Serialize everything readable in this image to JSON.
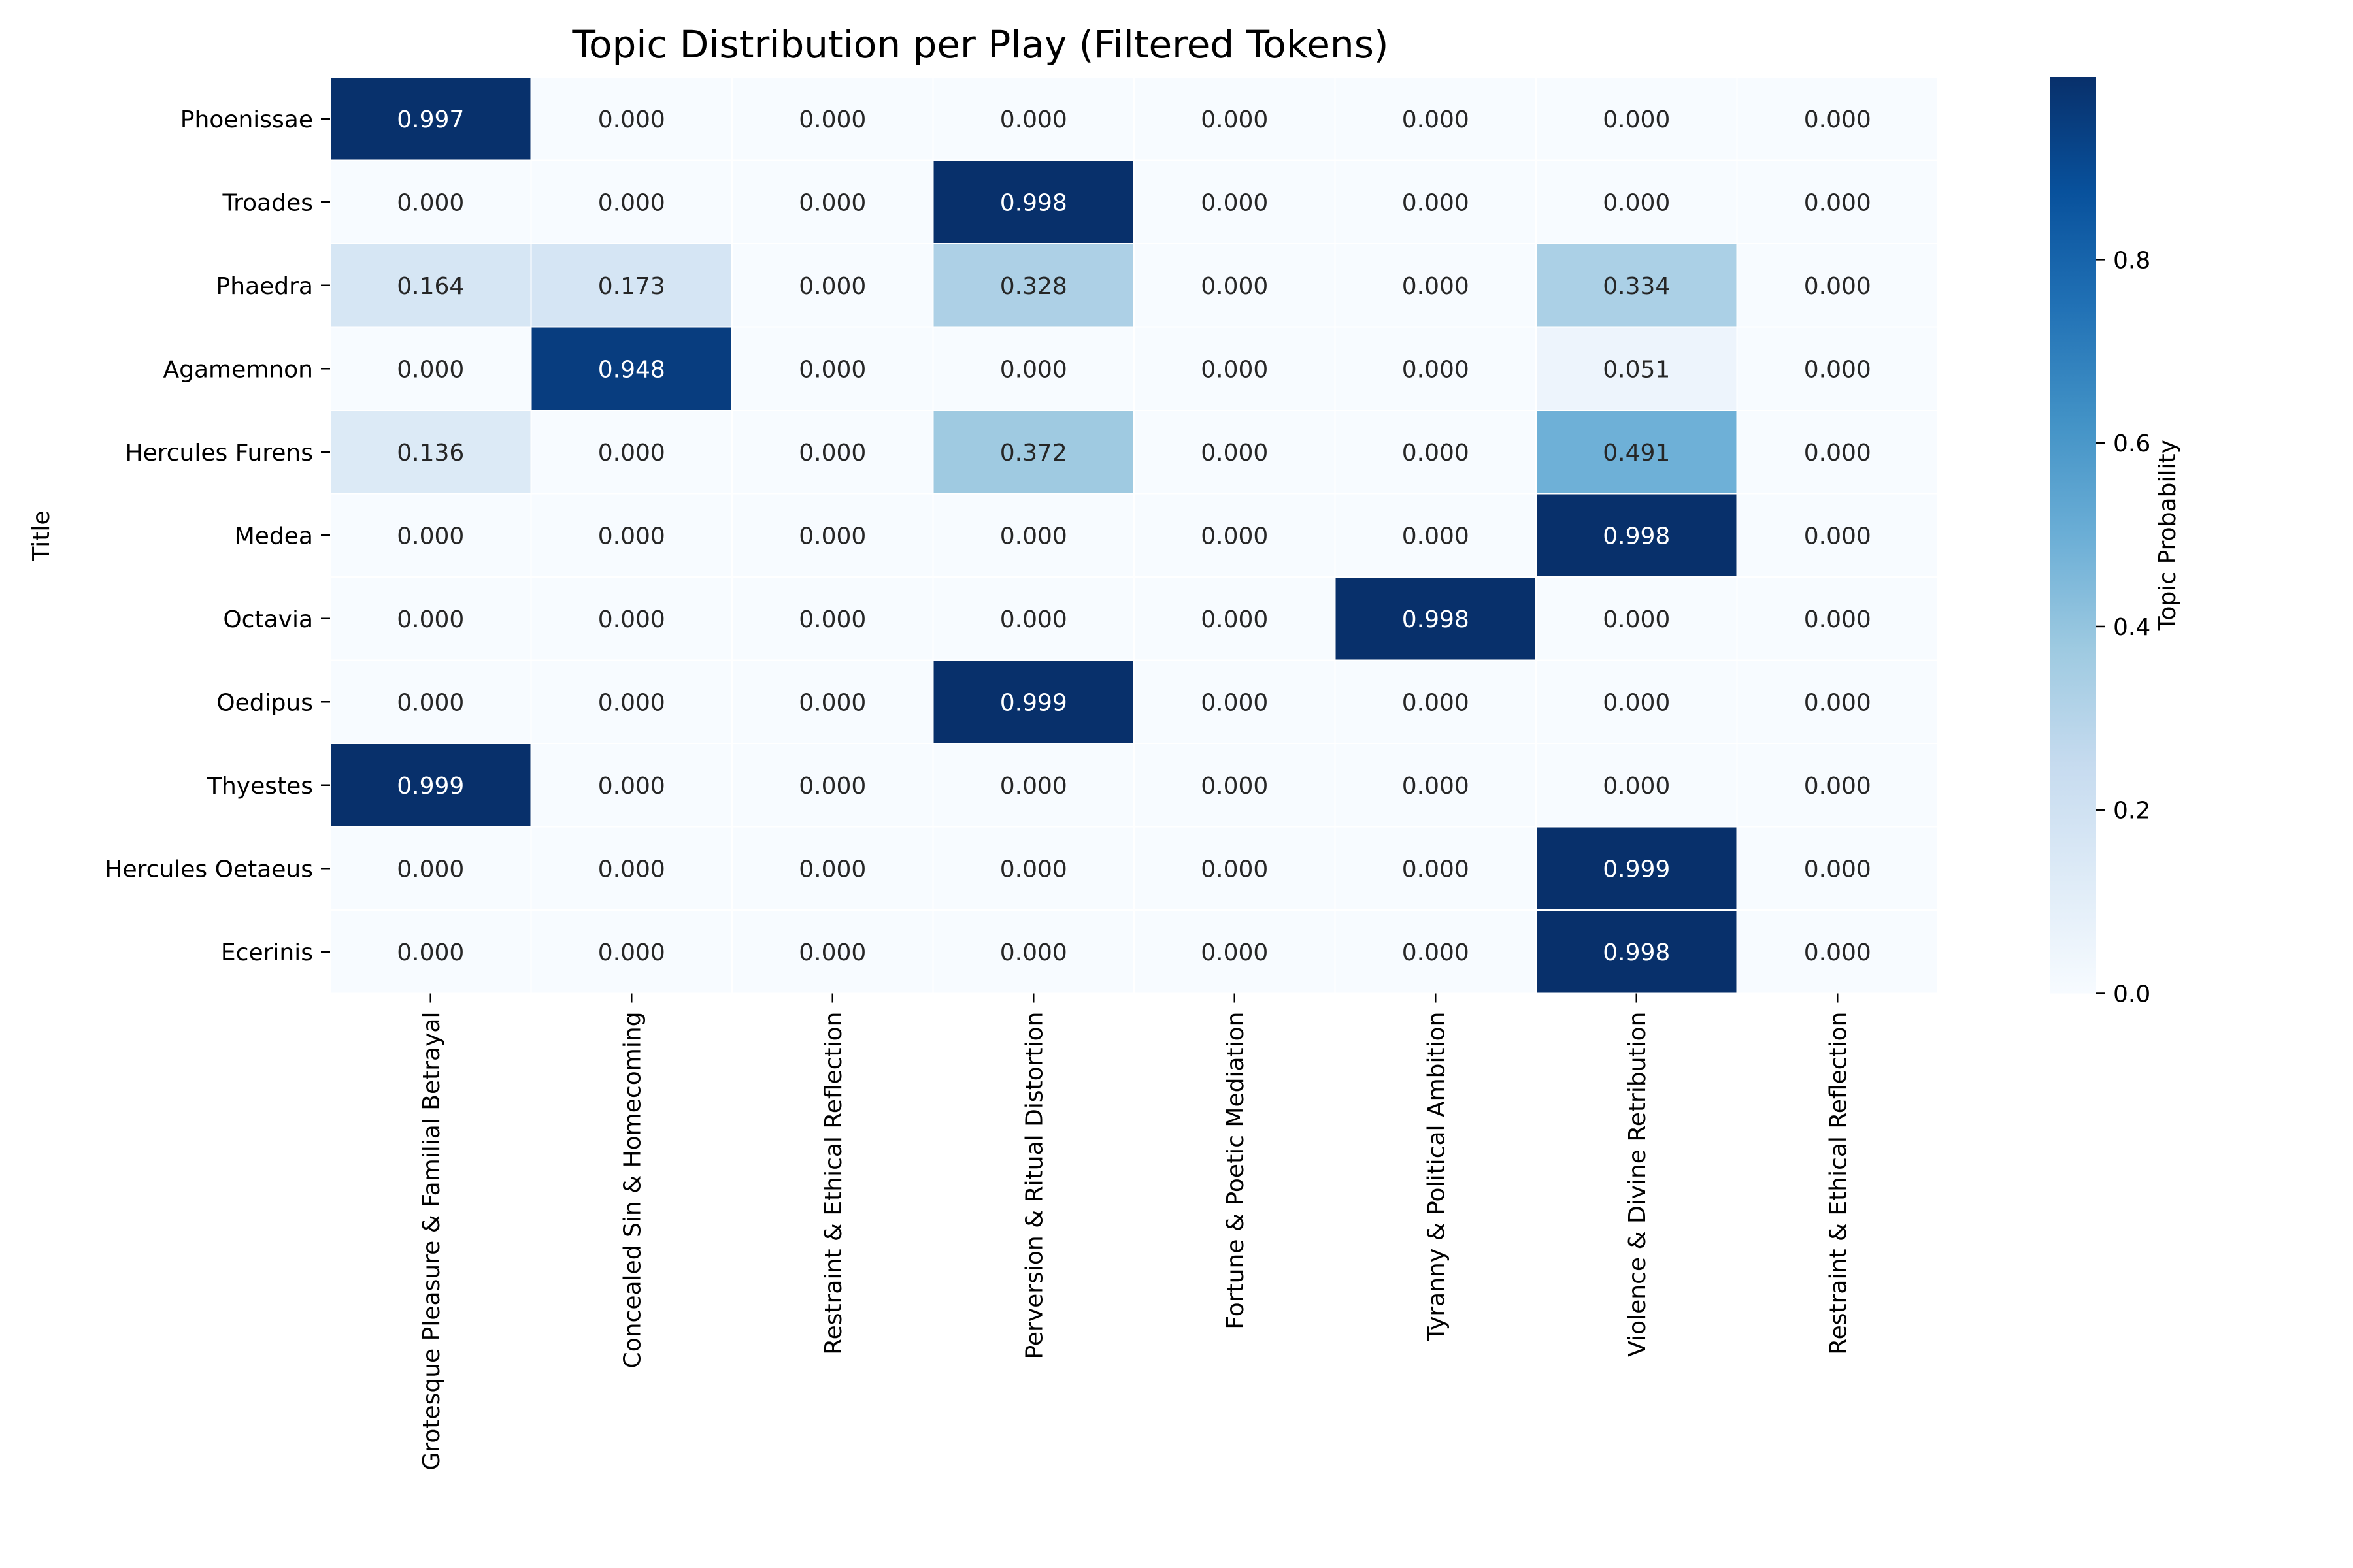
{
  "chart_data": {
    "type": "heatmap",
    "title": "Topic Distribution per Play (Filtered Tokens)",
    "xlabel": "",
    "ylabel": "Title",
    "rows": [
      "Phoenissae",
      "Troades",
      "Phaedra",
      "Agamemnon",
      "Hercules Furens",
      "Medea",
      "Octavia",
      "Oedipus",
      "Thyestes",
      "Hercules Oetaeus",
      "Ecerinis"
    ],
    "columns": [
      "Grotesque Pleasure & Familial Betrayal",
      "Concealed Sin & Homecoming",
      "Restraint & Ethical Reflection",
      "Perversion & Ritual Distortion",
      "Fortune & Poetic Mediation",
      "Tyranny & Political Ambition",
      "Violence & Divine Retribution",
      "Restraint & Ethical Reflection"
    ],
    "values": [
      [
        0.997,
        0.0,
        0.0,
        0.0,
        0.0,
        0.0,
        0.0,
        0.0
      ],
      [
        0.0,
        0.0,
        0.0,
        0.998,
        0.0,
        0.0,
        0.0,
        0.0
      ],
      [
        0.164,
        0.173,
        0.0,
        0.328,
        0.0,
        0.0,
        0.334,
        0.0
      ],
      [
        0.0,
        0.948,
        0.0,
        0.0,
        0.0,
        0.0,
        0.051,
        0.0
      ],
      [
        0.136,
        0.0,
        0.0,
        0.372,
        0.0,
        0.0,
        0.491,
        0.0
      ],
      [
        0.0,
        0.0,
        0.0,
        0.0,
        0.0,
        0.0,
        0.998,
        0.0
      ],
      [
        0.0,
        0.0,
        0.0,
        0.0,
        0.0,
        0.998,
        0.0,
        0.0
      ],
      [
        0.0,
        0.0,
        0.0,
        0.999,
        0.0,
        0.0,
        0.0,
        0.0
      ],
      [
        0.999,
        0.0,
        0.0,
        0.0,
        0.0,
        0.0,
        0.0,
        0.0
      ],
      [
        0.0,
        0.0,
        0.0,
        0.0,
        0.0,
        0.0,
        0.999,
        0.0
      ],
      [
        0.0,
        0.0,
        0.0,
        0.0,
        0.0,
        0.0,
        0.998,
        0.0
      ]
    ],
    "value_format": "0.000",
    "colormap": "Blues",
    "vmin": 0.0,
    "vmax": 0.999,
    "colorbar": {
      "label": "Topic Probability",
      "ticks": [
        0.0,
        0.2,
        0.4,
        0.6,
        0.8
      ],
      "tick_labels": [
        "0.0",
        "0.2",
        "0.4",
        "0.6",
        "0.8"
      ]
    },
    "cell_border_color": "#ffffff"
  }
}
